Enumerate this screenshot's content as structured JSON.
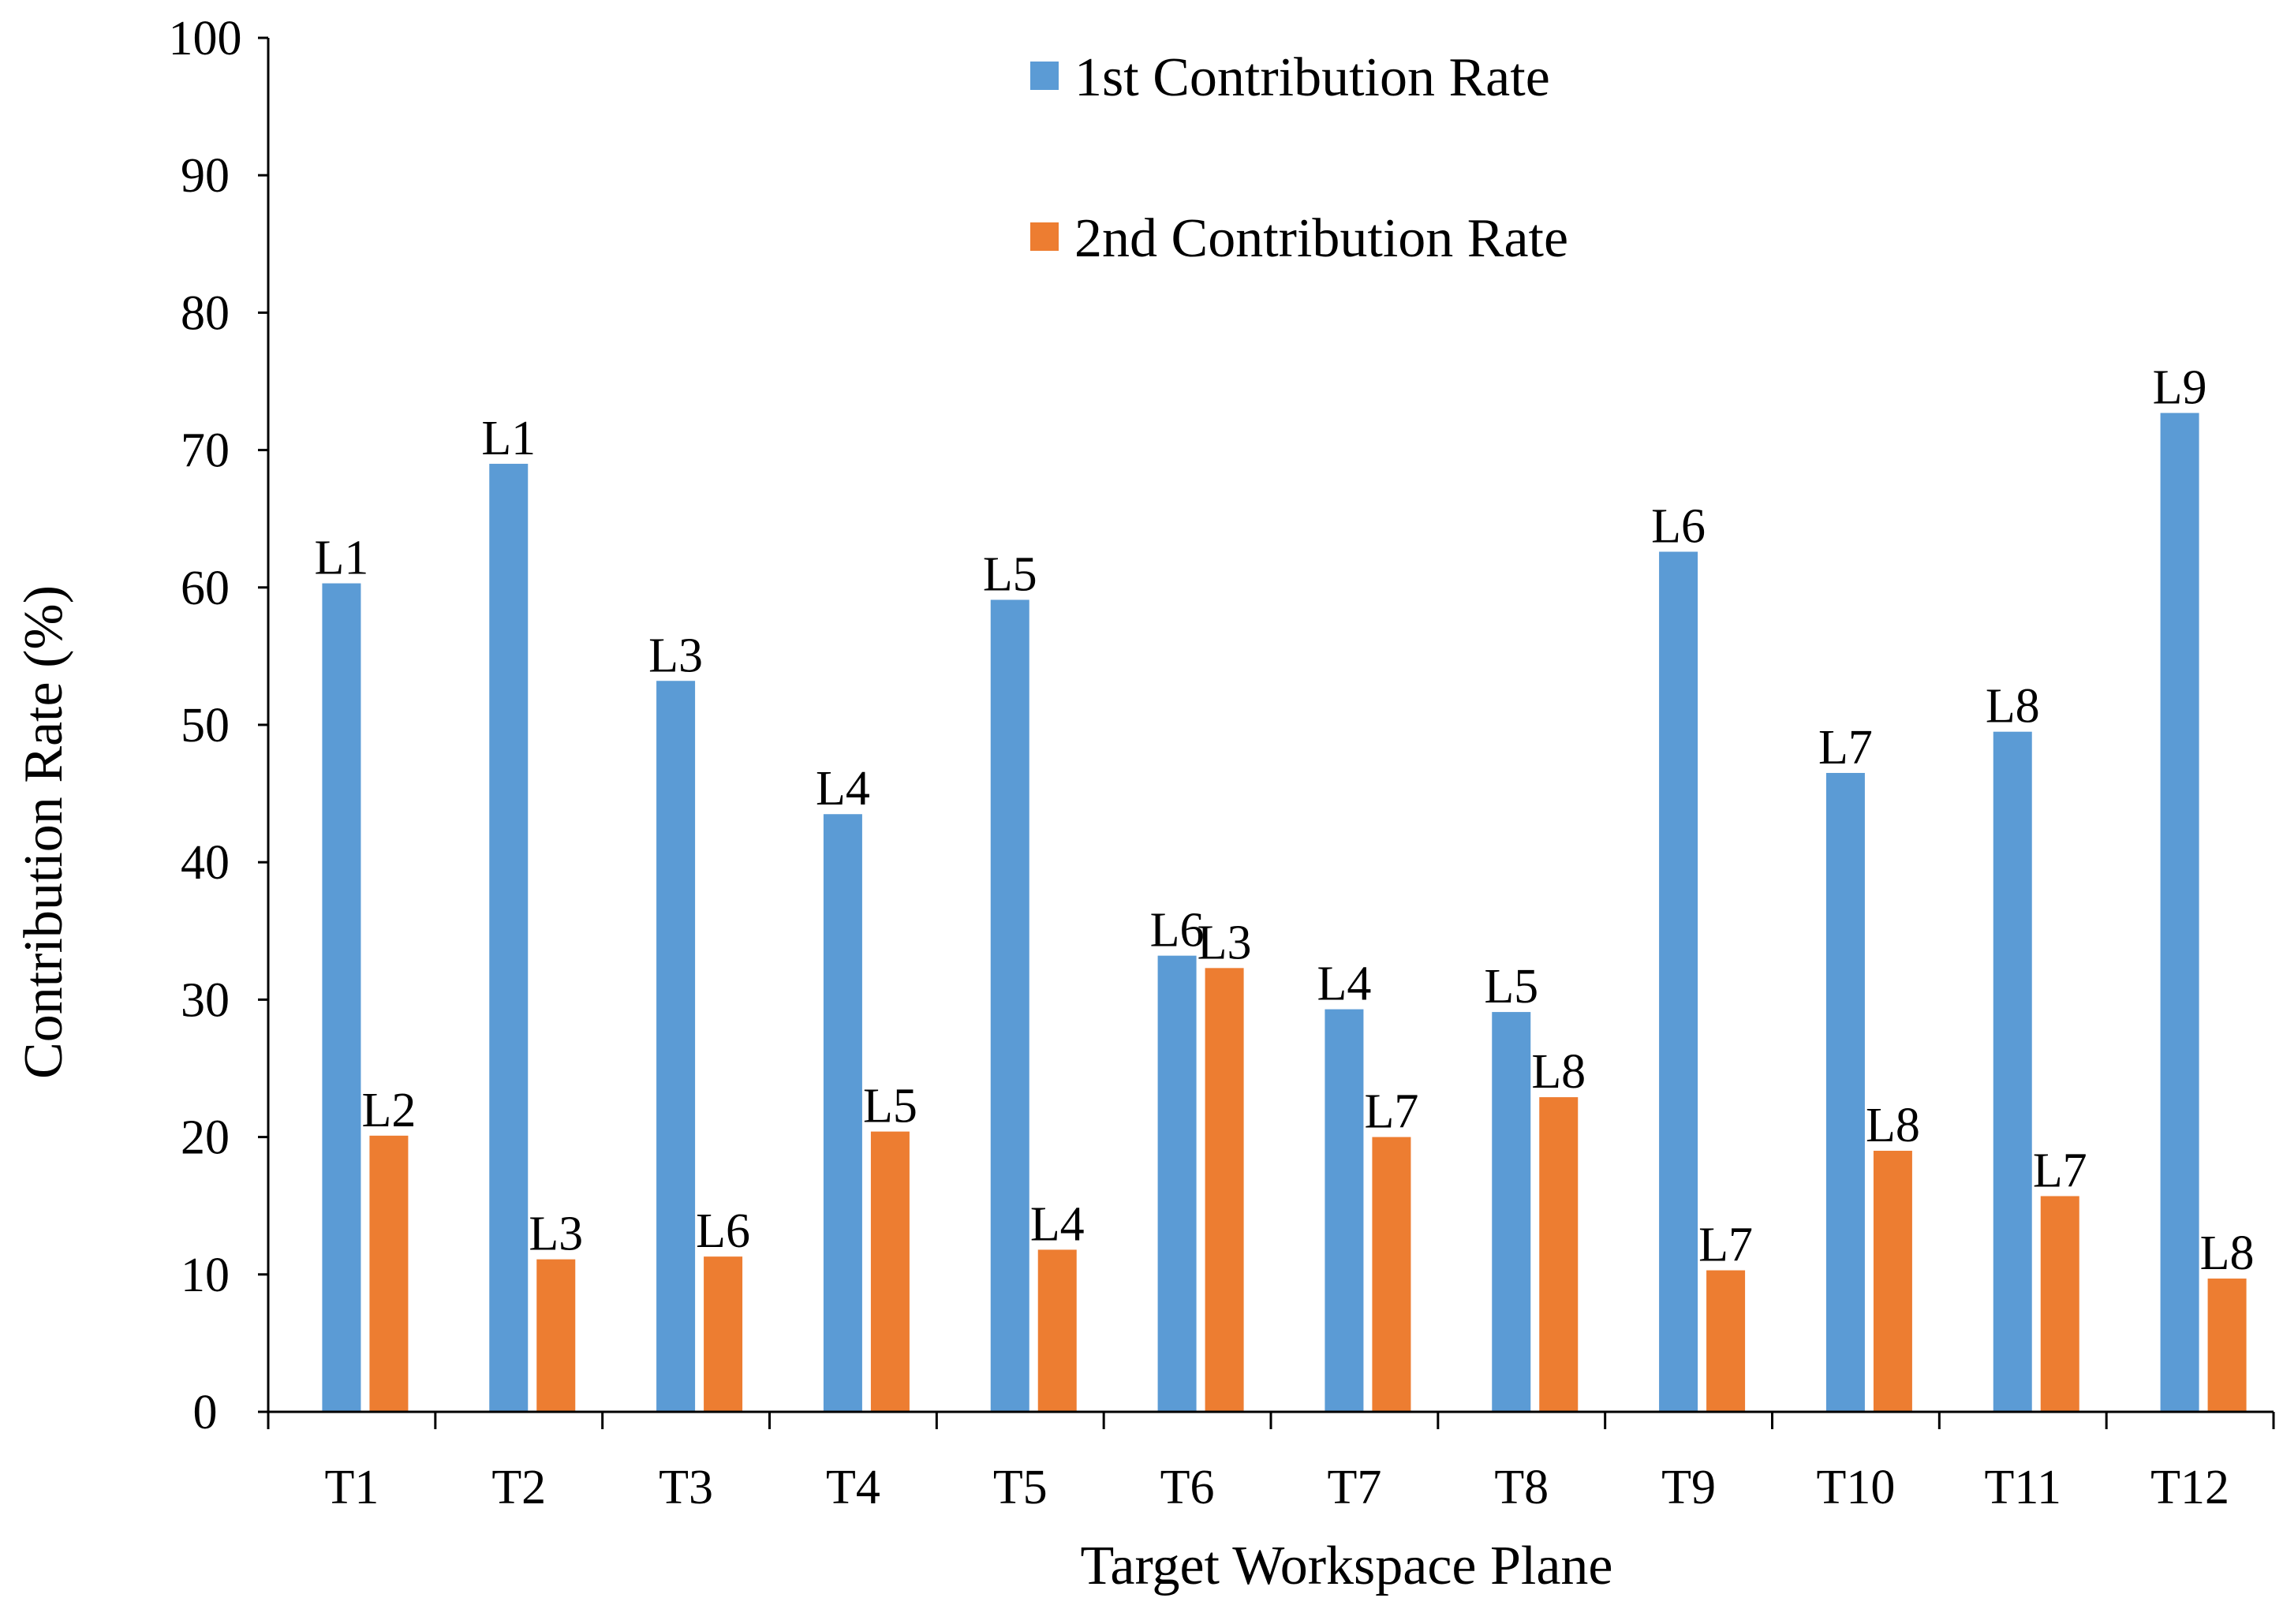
{
  "chart_data": {
    "type": "bar",
    "title": "",
    "xlabel": "Target Workspace Plane",
    "ylabel": "Contribution Rate (%)",
    "ylim": [
      0,
      100
    ],
    "ytick_step": 10,
    "yticks": [
      "0",
      "10",
      "20",
      "30",
      "40",
      "50",
      "60",
      "70",
      "80",
      "90",
      "100"
    ],
    "grid": false,
    "legend_position": "top-center",
    "categories": [
      "T1",
      "T2",
      "T3",
      "T4",
      "T5",
      "T6",
      "T7",
      "T8",
      "T9",
      "T10",
      "T11",
      "T12"
    ],
    "series": [
      {
        "name": "1st Contribution Rate",
        "color": "#5B9BD5",
        "values": [
          60.3,
          69.0,
          53.2,
          43.5,
          59.1,
          33.2,
          29.3,
          29.1,
          62.6,
          46.5,
          49.5,
          72.7
        ],
        "labels": [
          "L1",
          "L1",
          "L3",
          "L4",
          "L5",
          "L6",
          "L4",
          "L5",
          "L6",
          "L7",
          "L8",
          "L9"
        ]
      },
      {
        "name": "2nd Contribution Rate",
        "color": "#ED7D31",
        "values": [
          20.1,
          11.1,
          11.3,
          20.4,
          11.8,
          32.3,
          20.0,
          22.9,
          10.3,
          19.0,
          15.7,
          9.7
        ],
        "labels": [
          "L2",
          "L3",
          "L6",
          "L5",
          "L4",
          "L3",
          "L7",
          "L8",
          "L7",
          "L8",
          "L7",
          "L8"
        ]
      }
    ]
  }
}
